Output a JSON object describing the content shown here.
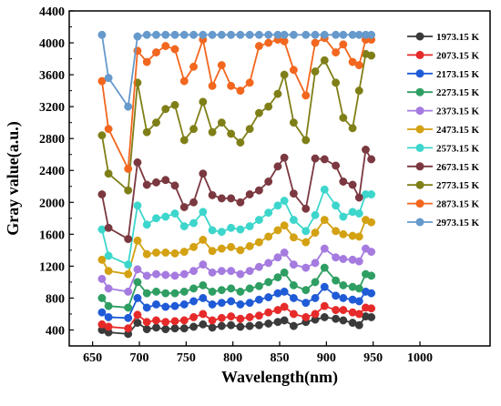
{
  "chart_data": {
    "type": "line",
    "xlabel": "Wavelength(nm)",
    "ylabel": "Gray value(a.u.)",
    "xlim": [
      625,
      1075
    ],
    "ylim": [
      200,
      4400
    ],
    "xticks": [
      650,
      700,
      750,
      800,
      850,
      900,
      950,
      1000
    ],
    "yticks": [
      400,
      800,
      1200,
      1600,
      2000,
      2400,
      2800,
      3200,
      3600,
      4000,
      4400
    ],
    "legend_position": "right",
    "grid": false,
    "x": [
      660,
      667,
      688,
      698,
      708,
      718,
      728,
      738,
      748,
      758,
      768,
      778,
      788,
      798,
      808,
      818,
      828,
      838,
      848,
      855,
      865,
      878,
      888,
      898,
      910,
      918,
      928,
      935,
      942,
      948
    ],
    "series": [
      {
        "name": "1973.15 K",
        "color": "#3a3a3a",
        "values": [
          400,
          370,
          350,
          490,
          410,
          430,
          410,
          420,
          420,
          440,
          470,
          430,
          450,
          460,
          440,
          450,
          460,
          480,
          500,
          520,
          450,
          500,
          530,
          560,
          540,
          520,
          490,
          460,
          570,
          560
        ]
      },
      {
        "name": "2073.15 K",
        "color": "#e62a2a",
        "values": [
          470,
          440,
          420,
          590,
          500,
          520,
          500,
          510,
          520,
          560,
          600,
          520,
          550,
          570,
          540,
          560,
          580,
          620,
          650,
          690,
          600,
          560,
          600,
          700,
          650,
          650,
          620,
          600,
          680,
          670
        ]
      },
      {
        "name": "2173.15 K",
        "color": "#1f5bd6",
        "values": [
          620,
          560,
          550,
          800,
          680,
          720,
          690,
          700,
          720,
          760,
          800,
          720,
          740,
          760,
          720,
          740,
          780,
          810,
          860,
          880,
          800,
          740,
          800,
          940,
          830,
          800,
          780,
          760,
          880,
          860
        ]
      },
      {
        "name": "2273.15 K",
        "color": "#2e9e62",
        "values": [
          800,
          700,
          680,
          1000,
          860,
          880,
          860,
          860,
          880,
          920,
          960,
          880,
          900,
          920,
          880,
          920,
          950,
          1000,
          1060,
          1120,
          960,
          900,
          1000,
          1180,
          1020,
          960,
          940,
          920,
          1100,
          1080
        ]
      },
      {
        "name": "2373.15 K",
        "color": "#a57be0",
        "values": [
          1040,
          920,
          880,
          1160,
          1080,
          1100,
          1090,
          1080,
          1100,
          1140,
          1220,
          1120,
          1140,
          1140,
          1100,
          1140,
          1190,
          1240,
          1310,
          1370,
          1220,
          1180,
          1240,
          1420,
          1310,
          1290,
          1280,
          1260,
          1420,
          1380
        ]
      },
      {
        "name": "2473.15 K",
        "color": "#d3a112",
        "values": [
          1280,
          1140,
          1100,
          1520,
          1350,
          1370,
          1370,
          1360,
          1380,
          1440,
          1530,
          1390,
          1420,
          1440,
          1400,
          1450,
          1500,
          1570,
          1650,
          1710,
          1560,
          1500,
          1620,
          1780,
          1640,
          1600,
          1580,
          1570,
          1780,
          1750
        ]
      },
      {
        "name": "2573.15 K",
        "color": "#3dd6cc",
        "values": [
          1660,
          1330,
          1220,
          1960,
          1720,
          1800,
          1820,
          1860,
          1700,
          1740,
          1880,
          1650,
          1630,
          1680,
          1660,
          1700,
          1780,
          1870,
          1960,
          2020,
          1780,
          1640,
          1840,
          2160,
          1960,
          1820,
          1880,
          1860,
          2100,
          2100
        ]
      },
      {
        "name": "2673.15 K",
        "color": "#7b3840",
        "values": [
          2100,
          1680,
          1540,
          2500,
          2220,
          2250,
          2280,
          2210,
          1940,
          2000,
          2360,
          2090,
          2050,
          2050,
          2000,
          2100,
          2150,
          2260,
          2450,
          2560,
          2110,
          1920,
          2550,
          2540,
          2460,
          2260,
          2220,
          2060,
          2660,
          2540
        ]
      },
      {
        "name": "2773.15 K",
        "color": "#7f7f18",
        "values": [
          2840,
          2360,
          2150,
          3500,
          2880,
          3000,
          3170,
          3220,
          2780,
          2920,
          3260,
          2880,
          3000,
          2860,
          2750,
          2920,
          3120,
          3200,
          3360,
          3600,
          3000,
          2780,
          3640,
          3780,
          3500,
          3060,
          2930,
          3400,
          3860,
          3840
        ]
      },
      {
        "name": "2873.15 K",
        "color": "#f2661e",
        "values": [
          3520,
          2920,
          2420,
          3900,
          3760,
          3880,
          3960,
          3920,
          3520,
          3700,
          4040,
          3460,
          3720,
          3460,
          3400,
          3500,
          3960,
          4000,
          4040,
          4020,
          3660,
          3340,
          4000,
          4060,
          3880,
          3980,
          3760,
          3720,
          4040,
          4040
        ]
      },
      {
        "name": "2973.15 K",
        "color": "#6699cc",
        "values": [
          4100,
          3560,
          3200,
          4080,
          4100,
          4100,
          4100,
          4100,
          4100,
          4100,
          4100,
          4100,
          4100,
          4100,
          4100,
          4100,
          4100,
          4100,
          4100,
          4100,
          4100,
          4100,
          4100,
          4100,
          4100,
          4100,
          4100,
          4100,
          4100,
          4100
        ]
      }
    ]
  }
}
